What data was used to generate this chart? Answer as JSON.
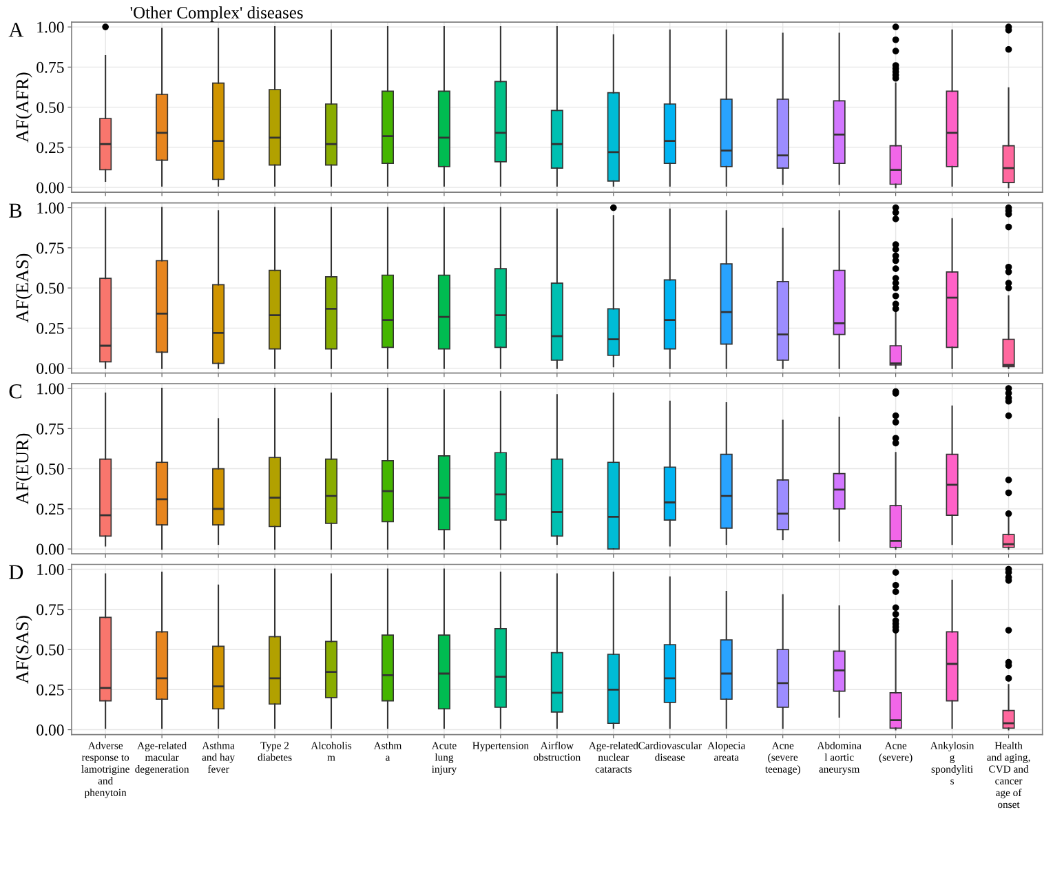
{
  "chart_data": [
    {
      "type": "box",
      "title": "'Other Complex' diseases",
      "ylabel": "AF(AFR)",
      "annotations": [
        "A"
      ],
      "grid": true,
      "categories": [
        null,
        null,
        null,
        null,
        null,
        null,
        null,
        null,
        null,
        null,
        null,
        null,
        null,
        null,
        null,
        null,
        null
      ],
      "colors": [
        "#f8766d",
        "#e7851e",
        "#d09400",
        "#b2a100",
        "#89ac00",
        "#45b500",
        "#00bc51",
        "#00c087",
        "#00c0b2",
        "#00bcd6",
        "#00b3f2",
        "#29a3ff",
        "#9c8dff",
        "#d277ff",
        "#f166e8",
        "#ff61c7",
        "#ff689e"
      ],
      "ylim": [
        -0.03,
        1.03
      ],
      "yticks": [
        {
          "value": 0,
          "label": "0.00"
        },
        {
          "value": 0.25,
          "label": "0.25"
        },
        {
          "value": 0.5,
          "label": "0.50"
        },
        {
          "value": 0.75,
          "label": "0.75"
        },
        {
          "value": 1,
          "label": "1.00"
        }
      ],
      "boxes": [
        {
          "low": 0.04,
          "q1": 0.11,
          "median": 0.27,
          "q3": 0.43,
          "high": 0.82,
          "outliers": [
            1.0
          ]
        },
        {
          "low": 0.01,
          "q1": 0.17,
          "median": 0.34,
          "q3": 0.58,
          "high": 0.99
        },
        {
          "low": 0.01,
          "q1": 0.05,
          "median": 0.29,
          "q3": 0.65,
          "high": 0.99
        },
        {
          "low": 0.01,
          "q1": 0.14,
          "median": 0.31,
          "q3": 0.61,
          "high": 1.0
        },
        {
          "low": 0.01,
          "q1": 0.14,
          "median": 0.27,
          "q3": 0.52,
          "high": 0.98
        },
        {
          "low": 0.01,
          "q1": 0.15,
          "median": 0.32,
          "q3": 0.6,
          "high": 1.0
        },
        {
          "low": 0.01,
          "q1": 0.13,
          "median": 0.31,
          "q3": 0.6,
          "high": 1.0
        },
        {
          "low": 0.01,
          "q1": 0.16,
          "median": 0.34,
          "q3": 0.66,
          "high": 1.0
        },
        {
          "low": 0.01,
          "q1": 0.12,
          "median": 0.27,
          "q3": 0.48,
          "high": 1.0
        },
        {
          "low": 0.01,
          "q1": 0.04,
          "median": 0.22,
          "q3": 0.59,
          "high": 0.95
        },
        {
          "low": 0.01,
          "q1": 0.15,
          "median": 0.29,
          "q3": 0.52,
          "high": 0.98
        },
        {
          "low": 0.01,
          "q1": 0.13,
          "median": 0.23,
          "q3": 0.55,
          "high": 0.98
        },
        {
          "low": 0.02,
          "q1": 0.12,
          "median": 0.2,
          "q3": 0.55,
          "high": 0.96
        },
        {
          "low": 0.02,
          "q1": 0.15,
          "median": 0.33,
          "q3": 0.54,
          "high": 0.96
        },
        {
          "low": 0.0,
          "q1": 0.02,
          "median": 0.11,
          "q3": 0.26,
          "high": 0.65,
          "outliers": [
            0.68,
            0.7,
            0.72,
            0.74,
            0.76,
            0.85,
            0.92,
            1.0
          ]
        },
        {
          "low": 0.01,
          "q1": 0.13,
          "median": 0.34,
          "q3": 0.6,
          "high": 0.98
        },
        {
          "low": 0.0,
          "q1": 0.03,
          "median": 0.12,
          "q3": 0.26,
          "high": 0.62,
          "outliers": [
            0.86,
            0.98,
            1.0
          ]
        }
      ]
    },
    {
      "type": "box",
      "ylabel": "AF(EAS)",
      "annotations": [
        "B"
      ],
      "grid": true,
      "categories": [
        null,
        null,
        null,
        null,
        null,
        null,
        null,
        null,
        null,
        null,
        null,
        null,
        null,
        null,
        null,
        null,
        null
      ],
      "colors": [
        "#f8766d",
        "#e7851e",
        "#d09400",
        "#b2a100",
        "#89ac00",
        "#45b500",
        "#00bc51",
        "#00c087",
        "#00c0b2",
        "#00bcd6",
        "#00b3f2",
        "#29a3ff",
        "#9c8dff",
        "#d277ff",
        "#f166e8",
        "#ff61c7",
        "#ff689e"
      ],
      "ylim": [
        -0.03,
        1.03
      ],
      "yticks": [
        {
          "value": 0,
          "label": "0.00"
        },
        {
          "value": 0.25,
          "label": "0.25"
        },
        {
          "value": 0.5,
          "label": "0.50"
        },
        {
          "value": 0.75,
          "label": "0.75"
        },
        {
          "value": 1,
          "label": "1.00"
        }
      ],
      "boxes": [
        {
          "low": 0.0,
          "q1": 0.04,
          "median": 0.14,
          "q3": 0.56,
          "high": 1.0
        },
        {
          "low": 0.0,
          "q1": 0.1,
          "median": 0.34,
          "q3": 0.67,
          "high": 1.0
        },
        {
          "low": 0.0,
          "q1": 0.03,
          "median": 0.22,
          "q3": 0.52,
          "high": 0.98
        },
        {
          "low": 0.0,
          "q1": 0.12,
          "median": 0.33,
          "q3": 0.61,
          "high": 1.0
        },
        {
          "low": 0.0,
          "q1": 0.12,
          "median": 0.37,
          "q3": 0.57,
          "high": 1.0
        },
        {
          "low": 0.0,
          "q1": 0.13,
          "median": 0.3,
          "q3": 0.58,
          "high": 1.0
        },
        {
          "low": 0.0,
          "q1": 0.12,
          "median": 0.32,
          "q3": 0.58,
          "high": 1.0
        },
        {
          "low": 0.0,
          "q1": 0.13,
          "median": 0.33,
          "q3": 0.62,
          "high": 1.0
        },
        {
          "low": 0.0,
          "q1": 0.05,
          "median": 0.2,
          "q3": 0.53,
          "high": 0.99
        },
        {
          "low": 0.01,
          "q1": 0.08,
          "median": 0.18,
          "q3": 0.37,
          "high": 0.95,
          "outliers": [
            1.0
          ]
        },
        {
          "low": 0.0,
          "q1": 0.12,
          "median": 0.3,
          "q3": 0.55,
          "high": 0.99
        },
        {
          "low": 0.0,
          "q1": 0.15,
          "median": 0.35,
          "q3": 0.65,
          "high": 0.98
        },
        {
          "low": 0.0,
          "q1": 0.05,
          "median": 0.21,
          "q3": 0.54,
          "high": 0.87
        },
        {
          "low": 0.0,
          "q1": 0.21,
          "median": 0.28,
          "q3": 0.61,
          "high": 0.98
        },
        {
          "low": 0.0,
          "q1": 0.02,
          "median": 0.03,
          "q3": 0.14,
          "high": 0.35,
          "outliers": [
            0.37,
            0.4,
            0.45,
            0.5,
            0.53,
            0.56,
            0.62,
            0.67,
            0.7,
            0.74,
            0.77,
            0.93,
            0.97,
            1.0
          ]
        },
        {
          "low": 0.0,
          "q1": 0.13,
          "median": 0.44,
          "q3": 0.6,
          "high": 0.93
        },
        {
          "low": 0.0,
          "q1": 0.01,
          "median": 0.02,
          "q3": 0.18,
          "high": 0.45,
          "outliers": [
            0.5,
            0.53,
            0.6,
            0.63,
            0.88,
            0.96,
            0.98,
            1.0
          ]
        }
      ]
    },
    {
      "type": "box",
      "ylabel": "AF(EUR)",
      "annotations": [
        "C"
      ],
      "grid": true,
      "categories": [
        null,
        null,
        null,
        null,
        null,
        null,
        null,
        null,
        null,
        null,
        null,
        null,
        null,
        null,
        null,
        null,
        null
      ],
      "colors": [
        "#f8766d",
        "#e7851e",
        "#d09400",
        "#b2a100",
        "#89ac00",
        "#45b500",
        "#00bc51",
        "#00c087",
        "#00c0b2",
        "#00bcd6",
        "#00b3f2",
        "#29a3ff",
        "#9c8dff",
        "#d277ff",
        "#f166e8",
        "#ff61c7",
        "#ff689e"
      ],
      "ylim": [
        -0.03,
        1.03
      ],
      "yticks": [
        {
          "value": 0,
          "label": "0.00"
        },
        {
          "value": 0.25,
          "label": "0.25"
        },
        {
          "value": 0.5,
          "label": "0.50"
        },
        {
          "value": 0.75,
          "label": "0.75"
        },
        {
          "value": 1,
          "label": "1.00"
        }
      ],
      "boxes": [
        {
          "low": 0.02,
          "q1": 0.08,
          "median": 0.21,
          "q3": 0.56,
          "high": 0.97
        },
        {
          "low": 0.0,
          "q1": 0.15,
          "median": 0.31,
          "q3": 0.54,
          "high": 1.0
        },
        {
          "low": 0.03,
          "q1": 0.15,
          "median": 0.25,
          "q3": 0.5,
          "high": 0.81
        },
        {
          "low": 0.0,
          "q1": 0.14,
          "median": 0.32,
          "q3": 0.57,
          "high": 1.0
        },
        {
          "low": 0.0,
          "q1": 0.16,
          "median": 0.33,
          "q3": 0.56,
          "high": 0.97
        },
        {
          "low": 0.0,
          "q1": 0.17,
          "median": 0.36,
          "q3": 0.55,
          "high": 1.0
        },
        {
          "low": 0.0,
          "q1": 0.12,
          "median": 0.32,
          "q3": 0.58,
          "high": 0.99
        },
        {
          "low": 0.0,
          "q1": 0.18,
          "median": 0.34,
          "q3": 0.6,
          "high": 0.98
        },
        {
          "low": 0.03,
          "q1": 0.08,
          "median": 0.23,
          "q3": 0.56,
          "high": 0.96
        },
        {
          "low": 0.0,
          "q1": 0.0,
          "median": 0.2,
          "q3": 0.54,
          "high": 0.97
        },
        {
          "low": 0.02,
          "q1": 0.18,
          "median": 0.29,
          "q3": 0.51,
          "high": 0.92
        },
        {
          "low": 0.03,
          "q1": 0.13,
          "median": 0.33,
          "q3": 0.59,
          "high": 0.91
        },
        {
          "low": 0.06,
          "q1": 0.12,
          "median": 0.22,
          "q3": 0.43,
          "high": 0.8
        },
        {
          "low": 0.05,
          "q1": 0.25,
          "median": 0.37,
          "q3": 0.47,
          "high": 0.82
        },
        {
          "low": 0.0,
          "q1": 0.01,
          "median": 0.05,
          "q3": 0.27,
          "high": 0.6,
          "outliers": [
            0.66,
            0.69,
            0.79,
            0.83,
            0.97,
            0.98
          ]
        },
        {
          "low": 0.03,
          "q1": 0.21,
          "median": 0.4,
          "q3": 0.59,
          "high": 0.89
        },
        {
          "low": 0.0,
          "q1": 0.01,
          "median": 0.03,
          "q3": 0.09,
          "high": 0.2,
          "outliers": [
            0.22,
            0.35,
            0.43,
            0.83,
            0.92,
            0.94,
            0.97,
            1.0
          ]
        }
      ]
    },
    {
      "type": "box",
      "ylabel": "AF(SAS)",
      "annotations": [
        "D"
      ],
      "grid": true,
      "categories": [
        "Adverse\nresponse to\nlamotrigine\nand\nphenytoin",
        "Age-related\nmacular\ndegeneration",
        "Asthma\nand hay\nfever",
        "Type 2\ndiabetes",
        "Alcoholis\nm",
        "Asthm\na",
        "Acute\nlung\ninjury",
        "Hypertension",
        "Airflow\nobstruction",
        "Age-related\nnuclear\ncataracts",
        "Cardiovascular\ndisease",
        "Alopecia\nareata",
        "Acne\n(severe\nteenage)",
        "Abdomina\nl aortic\naneurysm",
        "Acne\n(severe)",
        "Ankylosin\ng\nspondyliti\ns",
        "Health\nand aging,\nCVD and\ncancer\nage of\nonset"
      ],
      "colors": [
        "#f8766d",
        "#e7851e",
        "#d09400",
        "#b2a100",
        "#89ac00",
        "#45b500",
        "#00bc51",
        "#00c087",
        "#00c0b2",
        "#00bcd6",
        "#00b3f2",
        "#29a3ff",
        "#9c8dff",
        "#d277ff",
        "#f166e8",
        "#ff61c7",
        "#ff689e"
      ],
      "ylim": [
        -0.03,
        1.03
      ],
      "yticks": [
        {
          "value": 0,
          "label": "0.00"
        },
        {
          "value": 0.25,
          "label": "0.25"
        },
        {
          "value": 0.5,
          "label": "0.50"
        },
        {
          "value": 0.75,
          "label": "0.75"
        },
        {
          "value": 1,
          "label": "1.00"
        }
      ],
      "boxes": [
        {
          "low": 0.01,
          "q1": 0.18,
          "median": 0.26,
          "q3": 0.7,
          "high": 0.97
        },
        {
          "low": 0.01,
          "q1": 0.19,
          "median": 0.32,
          "q3": 0.61,
          "high": 0.98
        },
        {
          "low": 0.01,
          "q1": 0.13,
          "median": 0.27,
          "q3": 0.52,
          "high": 0.9
        },
        {
          "low": 0.01,
          "q1": 0.16,
          "median": 0.32,
          "q3": 0.58,
          "high": 1.0
        },
        {
          "low": 0.01,
          "q1": 0.2,
          "median": 0.36,
          "q3": 0.55,
          "high": 0.97
        },
        {
          "low": 0.01,
          "q1": 0.18,
          "median": 0.34,
          "q3": 0.59,
          "high": 1.0
        },
        {
          "low": 0.01,
          "q1": 0.13,
          "median": 0.35,
          "q3": 0.59,
          "high": 1.0
        },
        {
          "low": 0.01,
          "q1": 0.14,
          "median": 0.33,
          "q3": 0.63,
          "high": 0.98
        },
        {
          "low": 0.01,
          "q1": 0.11,
          "median": 0.23,
          "q3": 0.48,
          "high": 0.97
        },
        {
          "low": 0.01,
          "q1": 0.04,
          "median": 0.25,
          "q3": 0.47,
          "high": 0.98
        },
        {
          "low": 0.01,
          "q1": 0.17,
          "median": 0.32,
          "q3": 0.53,
          "high": 0.95
        },
        {
          "low": 0.01,
          "q1": 0.19,
          "median": 0.35,
          "q3": 0.56,
          "high": 0.86
        },
        {
          "low": 0.01,
          "q1": 0.14,
          "median": 0.29,
          "q3": 0.5,
          "high": 0.84
        },
        {
          "low": 0.08,
          "q1": 0.24,
          "median": 0.37,
          "q3": 0.49,
          "high": 0.77
        },
        {
          "low": 0.0,
          "q1": 0.01,
          "median": 0.06,
          "q3": 0.23,
          "high": 0.6,
          "outliers": [
            0.62,
            0.64,
            0.66,
            0.68,
            0.72,
            0.76,
            0.86,
            0.9,
            0.98
          ]
        },
        {
          "low": 0.01,
          "q1": 0.18,
          "median": 0.41,
          "q3": 0.61,
          "high": 0.93
        },
        {
          "low": 0.0,
          "q1": 0.01,
          "median": 0.04,
          "q3": 0.12,
          "high": 0.28,
          "outliers": [
            0.32,
            0.4,
            0.42,
            0.62,
            0.93,
            0.95,
            0.98,
            1.0
          ]
        }
      ]
    }
  ]
}
